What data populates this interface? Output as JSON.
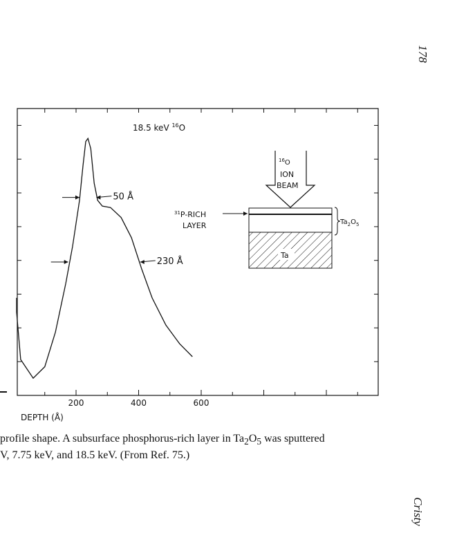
{
  "page_number": "178",
  "running_head": "Cristy",
  "caption": {
    "line1_pre": "profile shape. A subsurface phosphorus-rich layer in Ta",
    "line1_sub1": "2",
    "line1_mid": "O",
    "line1_sub2": "5",
    "line1_post": " was sputtered",
    "line2": "V, 7.75 keV, and 18.5 keV. (From Ref. 75.)"
  },
  "chart_data": {
    "type": "line",
    "title": "18.5 keV ¹⁶O",
    "title_main": "18.5 keV ",
    "title_sup": "16",
    "title_tail": "O",
    "xlabel": "DEPTH (Å)",
    "ylabel": "",
    "xlim": [
      0,
      1140
    ],
    "ylim": [
      0,
      1
    ],
    "x_ticks": [
      200,
      400,
      600
    ],
    "x_tick_labels": [
      "200",
      "400",
      "600"
    ],
    "grid": false,
    "series": [
      {
        "x": [
          10,
          23,
          63,
          100,
          134,
          167,
          189,
          211,
          222,
          231,
          238,
          247,
          258,
          269,
          284,
          310,
          344,
          377,
          410,
          443,
          487,
          531,
          572
        ],
        "y": [
          0.29,
          0.125,
          0.06,
          0.1,
          0.22,
          0.39,
          0.52,
          0.68,
          0.8,
          0.885,
          0.896,
          0.86,
          0.74,
          0.68,
          0.66,
          0.655,
          0.62,
          0.55,
          0.44,
          0.34,
          0.245,
          0.18,
          0.135
        ]
      }
    ],
    "annotations": [
      {
        "label": "50 Å",
        "from": 211,
        "to": 265,
        "y": 0.69
      },
      {
        "label": "230 Å",
        "from": 175,
        "to": 405,
        "y": 0.465
      }
    ],
    "inset": {
      "beam_label_sup": "16",
      "beam_label_lines": [
        "O",
        "ION",
        "BEAM"
      ],
      "layer_label_sup": "31",
      "layer_label_lines": [
        "P-RICH",
        "LAYER"
      ],
      "oxide_label": "Ta",
      "oxide_sub1": "2",
      "oxide_mid": "O",
      "oxide_sub2": "5",
      "substrate_label": "Ta"
    }
  }
}
